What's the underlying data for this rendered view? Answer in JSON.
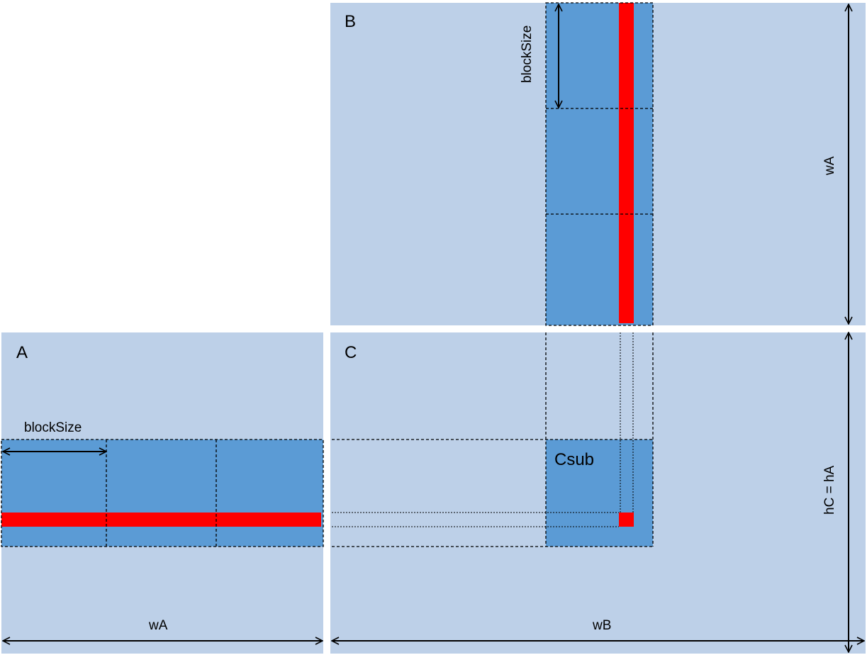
{
  "labels": {
    "a": "A",
    "b": "B",
    "c": "C",
    "csub": "Csub",
    "block_size_a": "blockSize",
    "block_size_b": "blockSize",
    "wa_bottom": "wA",
    "wb_bottom": "wB",
    "wa_right": "wA",
    "hc_right": "hC = hA"
  },
  "colors": {
    "matrix": "#bdd0e8",
    "block": "#5b9bd5",
    "highlight": "#ff0000"
  }
}
